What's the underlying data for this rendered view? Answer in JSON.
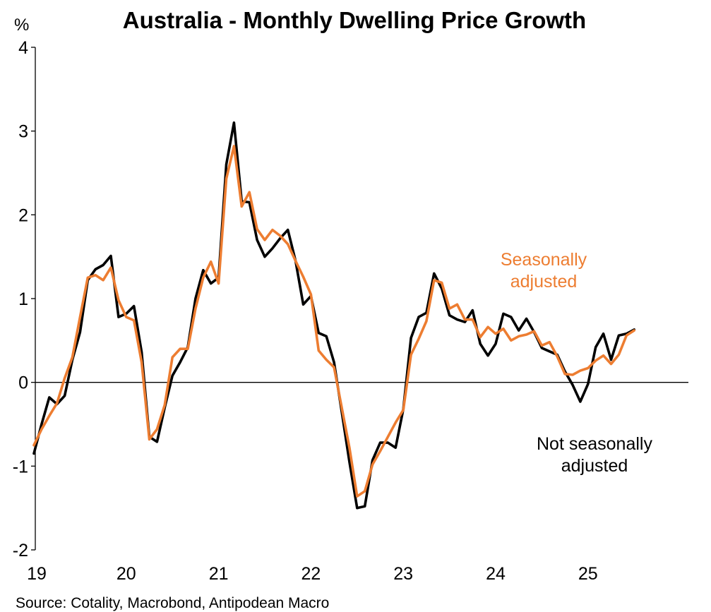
{
  "chart_data": {
    "type": "line",
    "title": "Australia - Monthly Dwelling Price Growth",
    "ylabel": "%",
    "xlabel": "",
    "x_start": "2019-01",
    "x_end": "2025-07",
    "ylim": [
      -2,
      4
    ],
    "y_ticks": [
      -2,
      -1,
      0,
      1,
      2,
      3,
      4
    ],
    "x_ticks": [
      "19",
      "20",
      "21",
      "22",
      "23",
      "24",
      "25"
    ],
    "grid": false,
    "series": [
      {
        "name": "Not seasonally adjusted",
        "color": "#000000",
        "values": [
          -0.85,
          -0.5,
          -0.18,
          -0.26,
          -0.16,
          0.27,
          0.6,
          1.22,
          1.35,
          1.4,
          1.51,
          0.78,
          0.82,
          0.91,
          0.36,
          -0.65,
          -0.71,
          -0.3,
          0.08,
          0.24,
          0.42,
          1.0,
          1.34,
          1.18,
          1.25,
          2.6,
          3.1,
          2.16,
          2.15,
          1.7,
          1.5,
          1.6,
          1.72,
          1.82,
          1.45,
          0.93,
          1.03,
          0.59,
          0.55,
          0.24,
          -0.35,
          -0.95,
          -1.5,
          -1.48,
          -0.93,
          -0.72,
          -0.72,
          -0.78,
          -0.32,
          0.53,
          0.78,
          0.83,
          1.3,
          1.12,
          0.8,
          0.75,
          0.72,
          0.86,
          0.46,
          0.32,
          0.46,
          0.82,
          0.78,
          0.62,
          0.76,
          0.6,
          0.41,
          0.37,
          0.33,
          0.13,
          -0.03,
          -0.23,
          -0.02,
          0.42,
          0.58,
          0.27,
          0.56,
          0.58,
          0.63
        ],
        "label": "Not seasonally adjusted",
        "label_lines": [
          "Not seasonally",
          "adjusted"
        ]
      },
      {
        "name": "Seasonally adjusted",
        "color": "#ED7D31",
        "values": [
          -0.75,
          -0.56,
          -0.4,
          -0.25,
          0.05,
          0.3,
          0.78,
          1.25,
          1.28,
          1.22,
          1.37,
          0.98,
          0.78,
          0.74,
          0.24,
          -0.68,
          -0.56,
          -0.27,
          0.3,
          0.4,
          0.4,
          0.88,
          1.25,
          1.44,
          1.18,
          2.43,
          2.82,
          2.1,
          2.27,
          1.83,
          1.7,
          1.82,
          1.75,
          1.65,
          1.45,
          1.26,
          1.05,
          0.38,
          0.27,
          0.18,
          -0.3,
          -0.78,
          -1.36,
          -1.3,
          -0.98,
          -0.82,
          -0.65,
          -0.48,
          -0.33,
          0.33,
          0.52,
          0.73,
          1.22,
          1.19,
          0.88,
          0.93,
          0.75,
          0.75,
          0.54,
          0.66,
          0.58,
          0.64,
          0.5,
          0.55,
          0.57,
          0.61,
          0.44,
          0.48,
          0.31,
          0.1,
          0.09,
          0.14,
          0.17,
          0.26,
          0.32,
          0.22,
          0.33,
          0.56,
          0.62
        ],
        "label": "Seasonally adjusted",
        "label_lines": [
          "Seasonally",
          "adjusted"
        ]
      }
    ]
  },
  "source": "Source: Cotality, Macrobond, Antipodean Macro"
}
